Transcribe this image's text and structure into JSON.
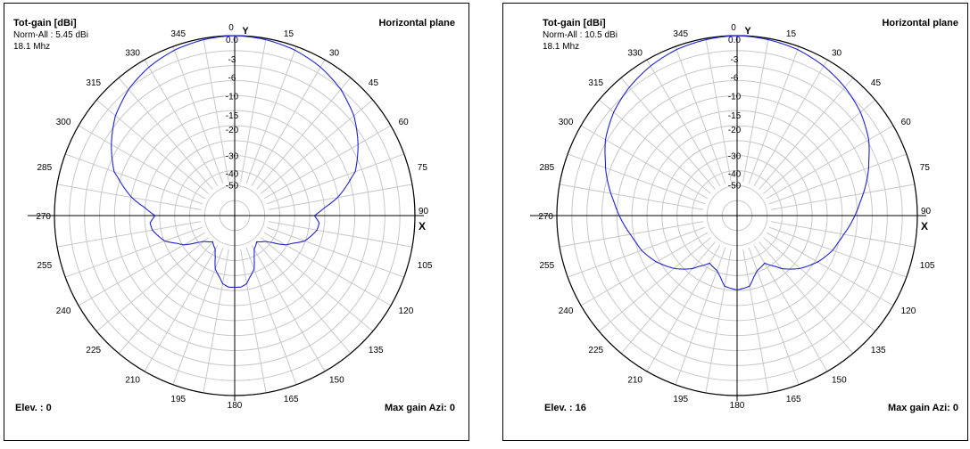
{
  "chart_data": [
    {
      "type": "polar",
      "plane": "Horizontal plane",
      "title": "Tot-gain [dBi]",
      "normalization": "Norm-All : 5.45 dBi",
      "frequency": "18.1 Mhz",
      "elevation_label": "Elev. : 0",
      "max_gain_label": "Max gain Azi: 0",
      "axis_y_label": "Y",
      "axis_x_label": "X",
      "angle_ticks": [
        "0",
        "15",
        "30",
        "45",
        "60",
        "75",
        "90",
        "105",
        "120",
        "135",
        "150",
        "165",
        "180",
        "195",
        "210",
        "225",
        "240",
        "255",
        "270",
        "285",
        "300",
        "315",
        "330",
        "345"
      ],
      "radial_ticks": [
        "0.0",
        "-3",
        "-6",
        "-10",
        "-15",
        "-20",
        "-30",
        "-40",
        "-50"
      ],
      "radial_tick_values_db": [
        0,
        -3,
        -6,
        -10,
        -15,
        -20,
        -30,
        -40,
        -50
      ],
      "pattern_color": "#2020d0",
      "pattern": {
        "azimuth_deg": [
          0,
          10,
          20,
          30,
          40,
          50,
          60,
          70,
          80,
          85,
          90,
          95,
          100,
          110,
          120,
          130,
          140,
          150,
          160,
          170,
          175,
          180,
          185,
          190,
          200,
          210,
          220,
          230,
          240,
          250,
          260,
          265,
          270,
          275,
          280,
          290,
          300,
          310,
          320,
          330,
          340,
          350,
          360
        ],
        "gain_db": [
          0,
          -0.2,
          -0.6,
          -1.3,
          -2.3,
          -3.8,
          -6,
          -9,
          -15,
          -20,
          -24,
          -22,
          -22.5,
          -26,
          -33,
          -45,
          -50,
          -46,
          -34,
          -28,
          -27,
          -27,
          -27,
          -28,
          -34,
          -46,
          -50,
          -45,
          -33,
          -26,
          -22.5,
          -22,
          -24,
          -20,
          -15,
          -9,
          -6,
          -3.8,
          -2.3,
          -1.3,
          -0.6,
          -0.2,
          0
        ]
      }
    },
    {
      "type": "polar",
      "plane": "Horizontal plane",
      "title": "Tot-gain [dBi]",
      "normalization": "Norm-All : 10.5 dBi",
      "frequency": "18.1 Mhz",
      "elevation_label": "Elev. : 16",
      "max_gain_label": "Max gain Azi: 0",
      "axis_y_label": "Y",
      "axis_x_label": "X",
      "angle_ticks": [
        "0",
        "15",
        "30",
        "45",
        "60",
        "75",
        "90",
        "105",
        "120",
        "135",
        "150",
        "165",
        "180",
        "195",
        "210",
        "225",
        "240",
        "255",
        "270",
        "285",
        "300",
        "315",
        "330",
        "345"
      ],
      "radial_ticks": [
        "0.0",
        "-3",
        "-6",
        "-10",
        "-15",
        "-20",
        "-30",
        "-40",
        "-50"
      ],
      "radial_tick_values_db": [
        0,
        -3,
        -6,
        -10,
        -15,
        -20,
        -30,
        -40,
        -50
      ],
      "pattern_color": "#2020d0",
      "pattern": {
        "azimuth_deg": [
          0,
          10,
          20,
          30,
          40,
          50,
          60,
          70,
          80,
          90,
          100,
          110,
          120,
          130,
          140,
          150,
          160,
          170,
          180,
          190,
          200,
          210,
          220,
          230,
          240,
          250,
          260,
          270,
          280,
          290,
          300,
          310,
          320,
          330,
          340,
          350,
          360
        ],
        "gain_db": [
          0,
          -0.2,
          -0.5,
          -1.1,
          -1.9,
          -2.9,
          -4.4,
          -6.5,
          -9,
          -11.5,
          -14,
          -16,
          -19,
          -23,
          -28,
          -35,
          -33,
          -27,
          -26,
          -27,
          -33,
          -35,
          -28,
          -23,
          -19,
          -16,
          -14,
          -11.5,
          -9,
          -6.5,
          -4.4,
          -2.9,
          -1.9,
          -1.1,
          -0.5,
          -0.2,
          0
        ]
      }
    }
  ]
}
